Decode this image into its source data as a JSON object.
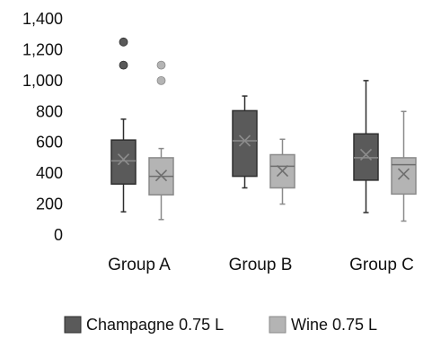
{
  "chart_data": {
    "type": "box",
    "categories": [
      "Group A",
      "Group B",
      "Group C"
    ],
    "ylim": [
      0,
      1400
    ],
    "yticks": [
      "0",
      "200",
      "400",
      "600",
      "800",
      "1,000",
      "1,200",
      "1,400"
    ],
    "yticks_values": [
      0,
      200,
      400,
      600,
      800,
      1000,
      1200,
      1400
    ],
    "grid": false,
    "legend_position": "bottom",
    "series": [
      {
        "name": "Champagne 0.75 L",
        "color": "#5a5a5a",
        "boxes": [
          {
            "min": 150,
            "q1": 330,
            "median": 480,
            "q3": 615,
            "max": 750,
            "mean": 490,
            "outliers": [
              1100,
              1250
            ]
          },
          {
            "min": 305,
            "q1": 380,
            "median": 610,
            "q3": 805,
            "max": 900,
            "mean": 610,
            "outliers": []
          },
          {
            "min": 145,
            "q1": 355,
            "median": 500,
            "q3": 655,
            "max": 1000,
            "mean": 520,
            "outliers": []
          }
        ]
      },
      {
        "name": "Wine 0.75 L",
        "color": "#b4b4b4",
        "boxes": [
          {
            "min": 100,
            "q1": 260,
            "median": 380,
            "q3": 500,
            "max": 560,
            "mean": 385,
            "outliers": [
              1000,
              1100
            ]
          },
          {
            "min": 200,
            "q1": 305,
            "median": 445,
            "q3": 520,
            "max": 620,
            "mean": 415,
            "outliers": []
          },
          {
            "min": 90,
            "q1": 265,
            "median": 455,
            "q3": 500,
            "max": 800,
            "mean": 395,
            "outliers": []
          }
        ]
      }
    ]
  }
}
